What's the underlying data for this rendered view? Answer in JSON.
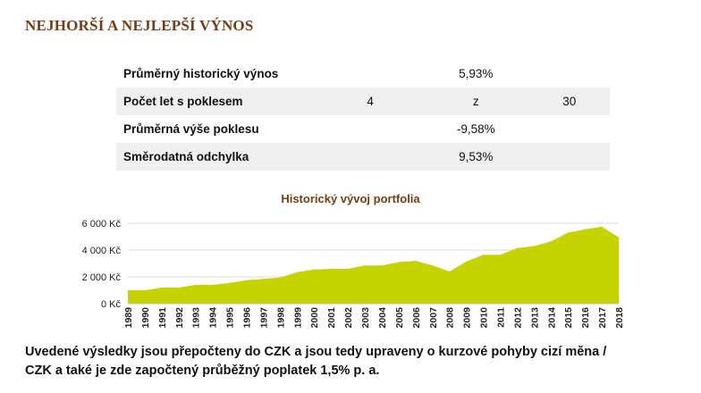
{
  "header": {
    "title": "NEJHORŠÍ A NEJLEPŠÍ VÝNOS"
  },
  "stats": {
    "rows": [
      {
        "label": "Průměrný historický výnos",
        "c1": "",
        "c2": "5,93%",
        "c3": ""
      },
      {
        "label": "Počet let s poklesem",
        "c1": "4",
        "c2": "z",
        "c3": "30"
      },
      {
        "label": "Průměrná výše poklesu",
        "c1": "",
        "c2": "-9,58%",
        "c3": ""
      },
      {
        "label": "Směrodatná odchylka",
        "c1": "",
        "c2": "9,53%",
        "c3": ""
      }
    ]
  },
  "chart_data": {
    "type": "area",
    "title": "Historický vývoj portfolia",
    "xlabel": "",
    "ylabel": "",
    "x": [
      "1989",
      "1990",
      "1991",
      "1992",
      "1993",
      "1994",
      "1995",
      "1996",
      "1997",
      "1998",
      "1999",
      "2000",
      "2001",
      "2002",
      "2003",
      "2004",
      "2005",
      "2006",
      "2007",
      "2008",
      "2009",
      "2010",
      "2011",
      "2012",
      "2013",
      "2014",
      "2015",
      "2016",
      "2017",
      "2018"
    ],
    "series": [
      {
        "values": [
          1000,
          1000,
          1200,
          1200,
          1400,
          1400,
          1550,
          1750,
          1850,
          1950,
          2350,
          2550,
          2600,
          2600,
          2850,
          2850,
          3100,
          3200,
          2850,
          2400,
          3150,
          3650,
          3650,
          4150,
          4300,
          4650,
          5300,
          5550,
          5750,
          4950
        ],
        "color": "#c5d300"
      }
    ],
    "ylim": [
      0,
      6000
    ],
    "yticks": [
      "0 Kč",
      "2 000 Kč",
      "4 000 Kč",
      "6 000 Kč"
    ],
    "ytick_values": [
      0,
      2000,
      4000,
      6000
    ],
    "grid": true,
    "legend": "none"
  },
  "footnote": {
    "line1": "Uvedené výsledky jsou přepočteny do CZK a jsou tedy upraveny o kurzové pohyby cizí měna /",
    "line2": "CZK a také je zde započtený průběžný poplatek 1,5% p. a."
  }
}
